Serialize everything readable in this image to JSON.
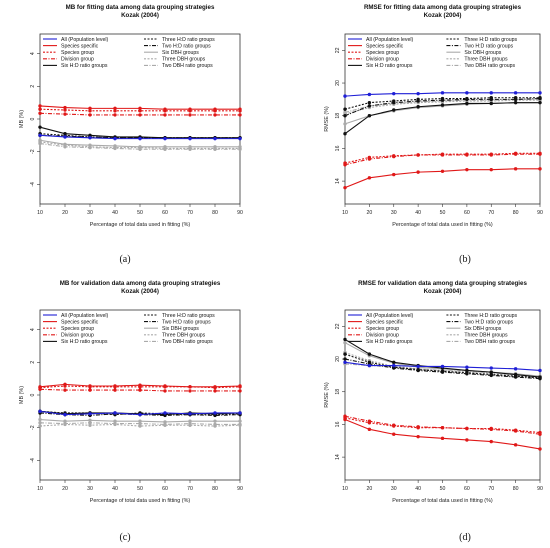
{
  "legend_items": [
    {
      "label": "All (Population level)",
      "color": "#1f1fd6",
      "dash": "",
      "marker": "circle",
      "col": 0
    },
    {
      "label": "Species specific",
      "color": "#e01818",
      "dash": "",
      "marker": "circle",
      "col": 0
    },
    {
      "label": "Species group",
      "color": "#e01818",
      "dash": "2,1.5",
      "marker": "circle",
      "col": 0
    },
    {
      "label": "Division group",
      "color": "#e01818",
      "dash": "4,1.5,1,1.5",
      "marker": "circle",
      "col": 0
    },
    {
      "label": "Six H:D ratio groups",
      "color": "#111111",
      "dash": "",
      "marker": "circle",
      "col": 0
    },
    {
      "label": "Three H:D ratio groups",
      "color": "#111111",
      "dash": "2,1.5",
      "marker": "circle",
      "col": 1
    },
    {
      "label": "Two H:D ratio groups",
      "color": "#111111",
      "dash": "4,1.5,1,1.5",
      "marker": "circle",
      "col": 1
    },
    {
      "label": "Six DBH groups",
      "color": "#aaaaaa",
      "dash": "",
      "marker": "circle",
      "col": 1
    },
    {
      "label": "Three DBH groups",
      "color": "#aaaaaa",
      "dash": "2,1.5",
      "marker": "circle",
      "col": 1
    },
    {
      "label": "Two DBH ratio groups",
      "color": "#aaaaaa",
      "dash": "4,1.5,1,1.5",
      "marker": "circle",
      "col": 1
    }
  ],
  "chart_data": [
    {
      "type": "line",
      "panel": "(a)",
      "title": "MB for fitting data among data grouping strategies",
      "subtitle": "Kozak (2004)",
      "xlabel": "Percentage of total data used in fitting (%)",
      "ylabel": "MB (%)",
      "x": [
        10,
        20,
        30,
        40,
        50,
        60,
        70,
        80,
        90
      ],
      "xlim": [
        10,
        90
      ],
      "ylim": [
        -5.2,
        5.2
      ],
      "yticks": [
        -4,
        -2,
        0,
        2,
        4
      ],
      "grid": false,
      "legend_position": "top",
      "series": [
        {
          "name": "All (Population level)",
          "values": [
            -1.0,
            -1.1,
            -1.15,
            -1.2,
            -1.2,
            -1.2,
            -1.2,
            -1.2,
            -1.2
          ]
        },
        {
          "name": "Species specific",
          "values": [
            0.8,
            0.7,
            0.65,
            0.65,
            0.65,
            0.6,
            0.6,
            0.6,
            0.6
          ]
        },
        {
          "name": "Species group",
          "values": [
            0.6,
            0.55,
            0.5,
            0.5,
            0.5,
            0.5,
            0.5,
            0.5,
            0.5
          ]
        },
        {
          "name": "Division group",
          "values": [
            0.35,
            0.3,
            0.25,
            0.25,
            0.25,
            0.25,
            0.25,
            0.25,
            0.25
          ]
        },
        {
          "name": "Six H:D ratio groups",
          "values": [
            -0.5,
            -0.9,
            -1.0,
            -1.1,
            -1.1,
            -1.15,
            -1.15,
            -1.15,
            -1.15
          ]
        },
        {
          "name": "Three H:D ratio groups",
          "values": [
            -0.9,
            -1.0,
            -1.1,
            -1.15,
            -1.15,
            -1.15,
            -1.15,
            -1.15,
            -1.15
          ]
        },
        {
          "name": "Two H:D ratio groups",
          "values": [
            -1.0,
            -1.05,
            -1.1,
            -1.15,
            -1.15,
            -1.15,
            -1.15,
            -1.15,
            -1.15
          ]
        },
        {
          "name": "Six DBH groups",
          "values": [
            -1.3,
            -1.55,
            -1.6,
            -1.65,
            -1.7,
            -1.7,
            -1.7,
            -1.7,
            -1.7
          ]
        },
        {
          "name": "Three DBH groups",
          "values": [
            -1.4,
            -1.6,
            -1.7,
            -1.75,
            -1.75,
            -1.8,
            -1.8,
            -1.8,
            -1.8
          ]
        },
        {
          "name": "Two DBH ratio groups",
          "values": [
            -1.5,
            -1.7,
            -1.75,
            -1.8,
            -1.85,
            -1.85,
            -1.85,
            -1.85,
            -1.85
          ]
        }
      ]
    },
    {
      "type": "line",
      "panel": "(b)",
      "title": "RMSE for fitting data among data grouping strategies",
      "subtitle": "Kozak (2004)",
      "xlabel": "Percentage of total data used in fitting (%)",
      "ylabel": "RMSE (%)",
      "x": [
        10,
        20,
        30,
        40,
        50,
        60,
        70,
        80,
        90
      ],
      "xlim": [
        10,
        90
      ],
      "ylim": [
        12.6,
        23.0
      ],
      "yticks": [
        14,
        16,
        18,
        20,
        22
      ],
      "grid": false,
      "legend_position": "top",
      "series": [
        {
          "name": "All (Population level)",
          "values": [
            19.2,
            19.3,
            19.35,
            19.35,
            19.4,
            19.4,
            19.4,
            19.4,
            19.4
          ]
        },
        {
          "name": "Species specific",
          "values": [
            13.6,
            14.2,
            14.4,
            14.55,
            14.6,
            14.7,
            14.7,
            14.75,
            14.75
          ]
        },
        {
          "name": "Species group",
          "values": [
            15.1,
            15.45,
            15.55,
            15.6,
            15.65,
            15.65,
            15.65,
            15.7,
            15.7
          ]
        },
        {
          "name": "Division group",
          "values": [
            15.0,
            15.35,
            15.5,
            15.6,
            15.6,
            15.6,
            15.6,
            15.65,
            15.65
          ]
        },
        {
          "name": "Six H:D ratio groups",
          "values": [
            16.9,
            18.0,
            18.35,
            18.55,
            18.65,
            18.75,
            18.75,
            18.8,
            18.8
          ]
        },
        {
          "name": "Three H:D ratio groups",
          "values": [
            18.4,
            18.8,
            18.9,
            19.0,
            19.05,
            19.05,
            19.1,
            19.1,
            19.1
          ]
        },
        {
          "name": "Two H:D ratio groups",
          "values": [
            18.0,
            18.6,
            18.8,
            18.9,
            18.95,
            19.0,
            19.0,
            19.0,
            19.05
          ]
        },
        {
          "name": "Six DBH groups",
          "values": [
            17.5,
            18.0,
            18.3,
            18.5,
            18.6,
            18.7,
            18.75,
            18.8,
            18.8
          ]
        },
        {
          "name": "Three DBH groups",
          "values": [
            18.1,
            18.5,
            18.7,
            18.8,
            18.85,
            18.9,
            18.9,
            18.95,
            18.95
          ]
        },
        {
          "name": "Two DBH ratio groups",
          "values": [
            18.2,
            18.6,
            18.75,
            18.85,
            18.9,
            18.95,
            18.95,
            19.0,
            19.0
          ]
        }
      ]
    },
    {
      "type": "line",
      "panel": "(c)",
      "title": "MB for validation data among data grouping strategies",
      "subtitle": "Kozak (2004)",
      "xlabel": "Percentage of total data used in fitting (%)",
      "ylabel": "MB (%)",
      "x": [
        10,
        20,
        30,
        40,
        50,
        60,
        70,
        80,
        90
      ],
      "xlim": [
        10,
        90
      ],
      "ylim": [
        -5.2,
        5.2
      ],
      "yticks": [
        -4,
        -2,
        0,
        2,
        4
      ],
      "grid": false,
      "legend_position": "top",
      "series": [
        {
          "name": "All (Population level)",
          "values": [
            -1.0,
            -1.2,
            -1.15,
            -1.1,
            -1.2,
            -1.1,
            -1.15,
            -1.1,
            -1.1
          ]
        },
        {
          "name": "Species specific",
          "values": [
            0.5,
            0.65,
            0.55,
            0.55,
            0.6,
            0.55,
            0.5,
            0.5,
            0.55
          ]
        },
        {
          "name": "Species group",
          "values": [
            0.45,
            0.55,
            0.5,
            0.5,
            0.5,
            0.5,
            0.5,
            0.45,
            0.5
          ]
        },
        {
          "name": "Division group",
          "values": [
            0.35,
            0.3,
            0.3,
            0.3,
            0.3,
            0.25,
            0.25,
            0.25,
            0.25
          ]
        },
        {
          "name": "Six H:D ratio groups",
          "values": [
            -1.0,
            -1.15,
            -1.1,
            -1.1,
            -1.15,
            -1.2,
            -1.1,
            -1.15,
            -1.1
          ]
        },
        {
          "name": "Three H:D ratio groups",
          "values": [
            -1.0,
            -1.1,
            -1.1,
            -1.2,
            -1.1,
            -1.15,
            -1.2,
            -1.2,
            -1.15
          ]
        },
        {
          "name": "Two H:D ratio groups",
          "values": [
            -1.1,
            -1.2,
            -1.25,
            -1.15,
            -1.2,
            -1.25,
            -1.2,
            -1.25,
            -1.2
          ]
        },
        {
          "name": "Six DBH groups",
          "values": [
            -1.5,
            -1.6,
            -1.55,
            -1.6,
            -1.6,
            -1.65,
            -1.6,
            -1.6,
            -1.6
          ]
        },
        {
          "name": "Three DBH groups",
          "values": [
            -1.9,
            -1.8,
            -1.85,
            -1.8,
            -1.9,
            -1.85,
            -1.85,
            -1.9,
            -1.85
          ]
        },
        {
          "name": "Two DBH ratio groups",
          "values": [
            -1.7,
            -1.75,
            -1.7,
            -1.75,
            -1.75,
            -1.8,
            -1.75,
            -1.8,
            -1.8
          ]
        }
      ]
    },
    {
      "type": "line",
      "panel": "(d)",
      "title": "RMSE for validation data among data grouping strategies",
      "subtitle": "Kozak (2004)",
      "xlabel": "Percentage of total data used in fitting (%)",
      "ylabel": "RMSE (%)",
      "x": [
        10,
        20,
        30,
        40,
        50,
        60,
        70,
        80,
        90
      ],
      "xlim": [
        10,
        90
      ],
      "ylim": [
        12.6,
        23.0
      ],
      "yticks": [
        14,
        16,
        18,
        20,
        22
      ],
      "grid": false,
      "legend_position": "top",
      "series": [
        {
          "name": "All (Population level)",
          "values": [
            19.8,
            19.6,
            19.6,
            19.55,
            19.55,
            19.5,
            19.45,
            19.4,
            19.3
          ]
        },
        {
          "name": "Species specific",
          "values": [
            16.3,
            15.7,
            15.4,
            15.25,
            15.15,
            15.05,
            14.95,
            14.75,
            14.5
          ]
        },
        {
          "name": "Species group",
          "values": [
            16.4,
            16.1,
            15.9,
            15.8,
            15.8,
            15.75,
            15.75,
            15.65,
            15.5
          ]
        },
        {
          "name": "Division group",
          "values": [
            16.5,
            16.2,
            15.95,
            15.85,
            15.8,
            15.75,
            15.7,
            15.6,
            15.4
          ]
        },
        {
          "name": "Six H:D ratio groups",
          "values": [
            21.2,
            20.3,
            19.8,
            19.6,
            19.45,
            19.3,
            19.2,
            19.05,
            18.9
          ]
        },
        {
          "name": "Three H:D ratio groups",
          "values": [
            20.3,
            19.8,
            19.5,
            19.35,
            19.25,
            19.15,
            19.05,
            18.95,
            18.85
          ]
        },
        {
          "name": "Two H:D ratio groups",
          "values": [
            20.0,
            19.7,
            19.45,
            19.3,
            19.2,
            19.1,
            19.0,
            18.9,
            18.8
          ]
        },
        {
          "name": "Six DBH groups",
          "values": [
            21.0,
            20.2,
            19.75,
            19.5,
            19.4,
            19.3,
            19.2,
            19.1,
            18.95
          ]
        },
        {
          "name": "Three DBH groups",
          "values": [
            20.4,
            19.9,
            19.55,
            19.4,
            19.3,
            19.2,
            19.1,
            19.0,
            18.9
          ]
        },
        {
          "name": "Two DBH ratio groups",
          "values": [
            19.7,
            19.6,
            19.5,
            19.4,
            19.3,
            19.25,
            19.15,
            19.05,
            18.9
          ]
        }
      ]
    }
  ]
}
